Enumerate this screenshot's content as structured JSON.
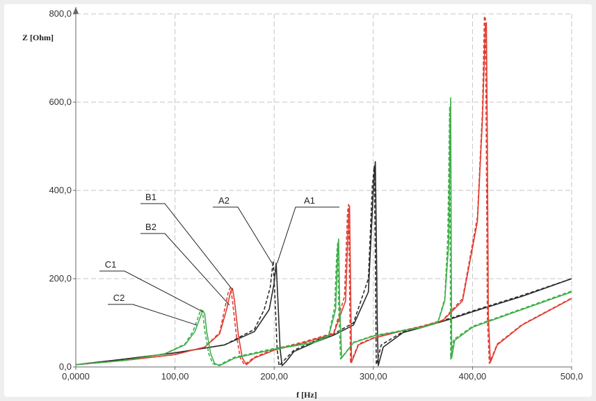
{
  "chart_data": {
    "type": "line",
    "xlabel": "f [Hz]",
    "ylabel": "Z [Ohm]",
    "xlim": [
      0,
      500
    ],
    "ylim": [
      0,
      800
    ],
    "x_ticks": [
      0,
      100,
      200,
      300,
      400,
      500
    ],
    "x_tick_labels": [
      "0,0000",
      "100,00",
      "200,00",
      "300,00",
      "400,00",
      "500,0"
    ],
    "y_ticks": [
      0,
      200,
      400,
      600,
      800
    ],
    "y_tick_labels": [
      "0,0",
      "200,0",
      "400,0",
      "600,0",
      "800,0"
    ],
    "grid": true,
    "legend": "none",
    "colors": {
      "A": "#2a2a2a",
      "B": "#e03c31",
      "C": "#3fae49"
    },
    "series": [
      {
        "name": "A1",
        "color": "#2a2a2a",
        "dashed": false,
        "x": [
          0,
          50,
          100,
          150,
          180,
          195,
          200,
          202,
          204,
          206,
          208,
          212,
          220,
          240,
          260,
          280,
          295,
          300,
          302,
          303,
          304,
          305,
          310,
          330,
          350,
          380,
          400,
          450,
          500
        ],
        "y": [
          5,
          18,
          32,
          50,
          80,
          130,
          190,
          235,
          140,
          40,
          3,
          12,
          35,
          55,
          72,
          95,
          170,
          400,
          465,
          300,
          100,
          3,
          45,
          78,
          90,
          110,
          125,
          160,
          200
        ]
      },
      {
        "name": "A2",
        "color": "#2a2a2a",
        "dashed": true,
        "x": [
          0,
          50,
          100,
          150,
          180,
          190,
          196,
          199,
          201,
          203,
          205,
          210,
          220,
          240,
          260,
          280,
          295,
          299,
          301,
          302,
          303,
          308,
          330,
          350,
          380,
          400,
          450,
          500
        ],
        "y": [
          5,
          18,
          32,
          50,
          85,
          130,
          180,
          240,
          150,
          40,
          3,
          15,
          38,
          58,
          75,
          100,
          200,
          410,
          455,
          250,
          5,
          50,
          80,
          92,
          112,
          127,
          162,
          200
        ]
      },
      {
        "name": "B1",
        "color": "#e03c31",
        "dashed": false,
        "x": [
          0,
          50,
          100,
          130,
          145,
          152,
          156,
          158,
          160,
          164,
          168,
          172,
          180,
          200,
          230,
          260,
          272,
          275,
          276,
          277,
          278,
          285,
          300,
          330,
          350,
          370,
          390,
          405,
          410,
          413,
          414,
          415,
          416,
          418,
          425,
          450,
          500
        ],
        "y": [
          5,
          15,
          28,
          45,
          75,
          130,
          170,
          178,
          150,
          70,
          20,
          5,
          20,
          38,
          55,
          75,
          150,
          340,
          365,
          200,
          10,
          50,
          65,
          82,
          92,
          105,
          150,
          330,
          560,
          770,
          780,
          500,
          120,
          10,
          50,
          95,
          155
        ]
      },
      {
        "name": "B2",
        "color": "#e03c31",
        "dashed": true,
        "x": [
          0,
          50,
          100,
          130,
          145,
          150,
          154,
          156,
          158,
          162,
          166,
          170,
          180,
          200,
          230,
          260,
          271,
          274,
          275,
          276,
          277,
          285,
          300,
          330,
          350,
          370,
          390,
          405,
          410,
          412,
          413,
          414,
          415,
          417,
          425,
          450,
          500
        ],
        "y": [
          5,
          15,
          28,
          45,
          78,
          130,
          172,
          180,
          150,
          70,
          20,
          5,
          22,
          40,
          57,
          77,
          160,
          350,
          368,
          190,
          8,
          52,
          66,
          83,
          93,
          106,
          155,
          340,
          580,
          795,
          790,
          480,
          110,
          8,
          52,
          96,
          156
        ]
      },
      {
        "name": "C1",
        "color": "#3fae49",
        "dashed": false,
        "x": [
          0,
          50,
          90,
          110,
          120,
          125,
          128,
          130,
          132,
          136,
          140,
          145,
          160,
          200,
          240,
          255,
          262,
          264,
          265,
          266,
          268,
          280,
          300,
          330,
          350,
          365,
          372,
          376,
          377,
          378,
          379,
          382,
          400,
          450,
          500
        ],
        "y": [
          5,
          15,
          30,
          50,
          80,
          110,
          128,
          120,
          80,
          30,
          8,
          3,
          20,
          40,
          55,
          70,
          130,
          260,
          290,
          150,
          20,
          55,
          70,
          82,
          90,
          100,
          150,
          280,
          440,
          610,
          20,
          60,
          90,
          130,
          170
        ]
      },
      {
        "name": "C2",
        "color": "#3fae49",
        "dashed": true,
        "x": [
          0,
          50,
          90,
          110,
          118,
          123,
          126,
          128,
          130,
          134,
          138,
          143,
          160,
          200,
          240,
          255,
          261,
          263,
          264,
          265,
          267,
          280,
          300,
          330,
          350,
          365,
          372,
          375,
          376,
          377,
          378,
          381,
          400,
          450,
          500
        ],
        "y": [
          5,
          15,
          30,
          52,
          80,
          110,
          130,
          122,
          82,
          30,
          8,
          3,
          22,
          42,
          57,
          72,
          135,
          250,
          280,
          140,
          18,
          56,
          71,
          83,
          91,
          101,
          155,
          290,
          430,
          590,
          18,
          62,
          92,
          132,
          172
        ]
      }
    ],
    "annotations": [
      {
        "text": "A1",
        "point": [
          203,
          235
        ]
      },
      {
        "text": "A2",
        "point": [
          198,
          235
        ]
      },
      {
        "text": "B1",
        "point": [
          158,
          175
        ]
      },
      {
        "text": "B2",
        "point": [
          155,
          140
        ]
      },
      {
        "text": "C1",
        "point": [
          128,
          125
        ]
      },
      {
        "text": "C2",
        "point": [
          122,
          95
        ]
      }
    ]
  }
}
